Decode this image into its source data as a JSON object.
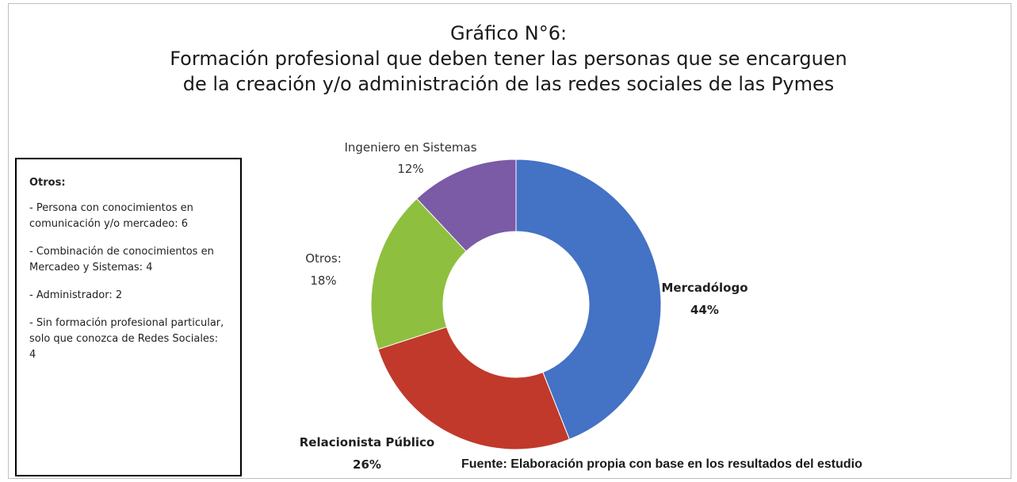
{
  "title": {
    "line1": "Gráfico N°6:",
    "line2": "Formación profesional que deben tener las personas que se encarguen",
    "line3": "de la creación y/o administración de las redes sociales de las Pymes"
  },
  "otros_box": {
    "header": "Otros:",
    "items": [
      "- Persona con conocimientos en comunicación y/o mercadeo: 6",
      "- Combinación de conocimientos en Mercadeo y Sistemas: 4",
      "- Administrador:  2",
      "- Sin formación profesional particular, solo que conozca de Redes Sociales: 4"
    ]
  },
  "source": "Fuente: Elaboración propia con base en los resultados del estudio",
  "chart_data": {
    "type": "pie",
    "donut": true,
    "start": "top, clockwise",
    "slices": [
      {
        "label": "Mercadólogo",
        "value": 44,
        "percent_label": "44%",
        "color": "#4472c4"
      },
      {
        "label": "Relacionista Público",
        "value": 26,
        "percent_label": "26%",
        "color": "#c0392b"
      },
      {
        "label": "Otros:",
        "value": 18,
        "percent_label": "18%",
        "color": "#8fbf3f"
      },
      {
        "label": "Ingeniero en Sistemas",
        "value": 12,
        "percent_label": "12%",
        "color": "#7b5aa6"
      }
    ]
  }
}
